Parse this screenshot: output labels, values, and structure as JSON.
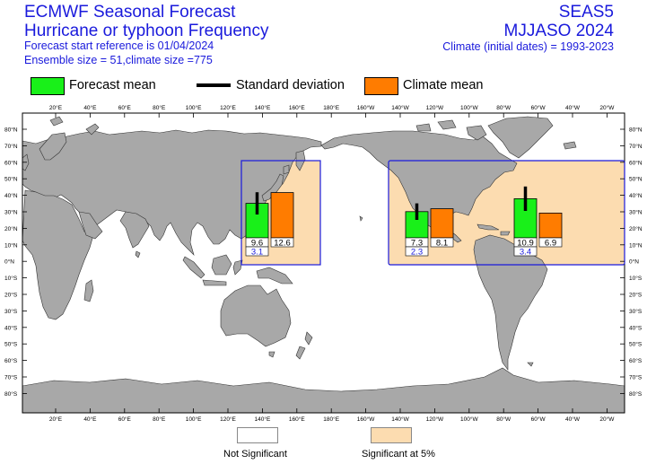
{
  "header": {
    "title_line1": "ECMWF Seasonal Forecast",
    "title_line2": "Hurricane or typhoon Frequency",
    "start_reference": "Forecast start reference is 01/04/2024",
    "ensemble_info": "Ensemble size = 51,climate size =775",
    "system": "SEAS5",
    "season": "MJJASO 2024",
    "climate_info": "Climate (initial dates) = 1993-2023"
  },
  "legend": {
    "forecast_mean": "Forecast mean",
    "standard_deviation": "Standard deviation",
    "climate_mean": "Climate mean",
    "not_significant": "Not Significant",
    "significant": "Significant at 5%"
  },
  "colors": {
    "forecast": "#19f019",
    "climate": "#ff7c00",
    "significant_fill": "#fcdcb0",
    "land": "#a8a8a8",
    "region_border": "#1a1adc",
    "title": "#1a1adc"
  },
  "axes": {
    "lon_labels": [
      "20°E",
      "40°E",
      "60°E",
      "80°E",
      "100°E",
      "120°E",
      "140°E",
      "160°E",
      "180°E",
      "160°W",
      "140°W",
      "120°W",
      "100°W",
      "80°W",
      "60°W",
      "40°W",
      "20°W"
    ],
    "lat_labels": [
      "80°N",
      "70°N",
      "60°N",
      "50°N",
      "40°N",
      "30°N",
      "20°N",
      "10°N",
      "0°N",
      "10°S",
      "20°S",
      "30°S",
      "40°S",
      "50°S",
      "60°S",
      "70°S",
      "80°S"
    ]
  },
  "regions": [
    {
      "name": "Western North Pacific",
      "significant": true,
      "forecast_mean": 9.6,
      "forecast_label": "9.6",
      "std_label": "3.1",
      "climate_mean": 12.6,
      "climate_label": "12.6",
      "std": 3.1
    },
    {
      "name": "Eastern North Pacific",
      "significant": true,
      "forecast_mean": 7.3,
      "forecast_label": "7.3",
      "std_label": "2.3",
      "climate_mean": 8.1,
      "climate_label": "8.1",
      "std": 2.3
    },
    {
      "name": "North Atlantic",
      "significant": true,
      "forecast_mean": 10.9,
      "forecast_label": "10.9",
      "std_label": "3.4",
      "climate_mean": 6.9,
      "climate_label": "6.9",
      "std": 3.4
    }
  ]
}
